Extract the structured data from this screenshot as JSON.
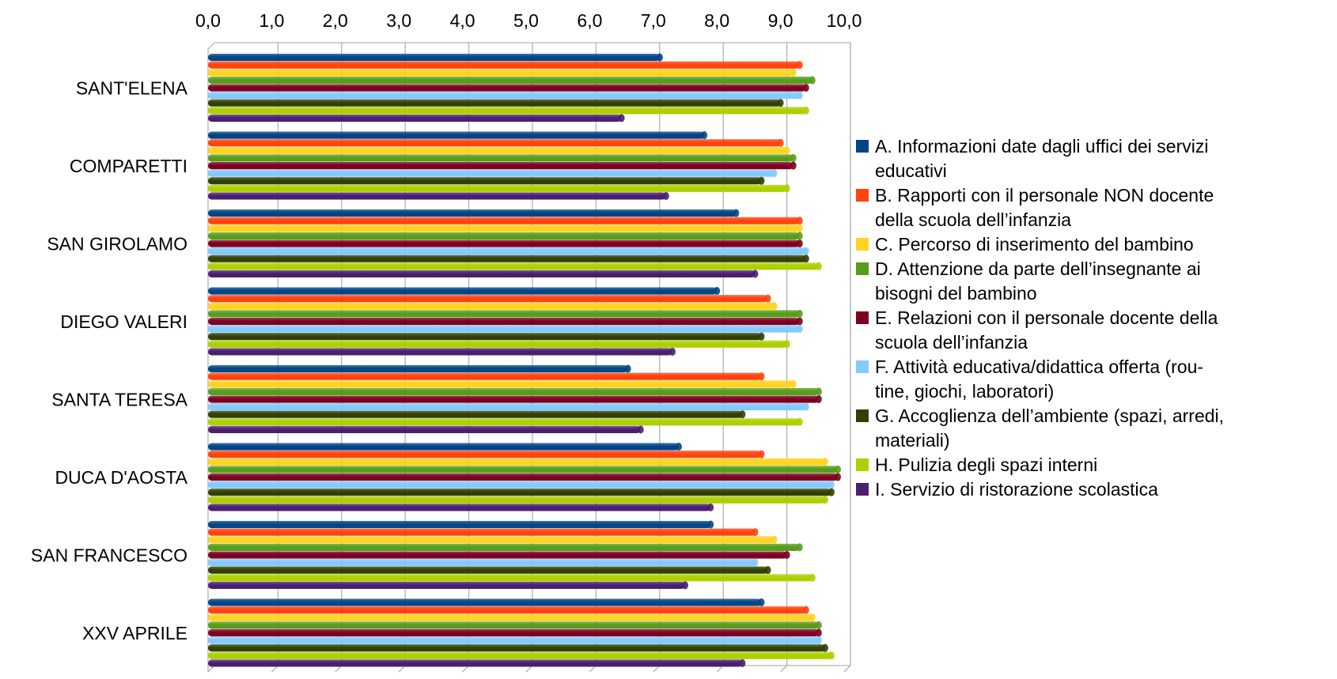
{
  "chart_data": {
    "type": "bar",
    "orientation": "horizontal",
    "title": "",
    "xlabel": "",
    "ylabel": "",
    "xlim": [
      0,
      10
    ],
    "x_ticks": [
      "0,0",
      "1,0",
      "2,0",
      "3,0",
      "4,0",
      "5,0",
      "6,0",
      "7,0",
      "8,0",
      "9,0",
      "10,0"
    ],
    "x_axis_position": "top",
    "grid": true,
    "legend_position": "right",
    "categories": [
      "SANT'ELENA",
      "COMPARETTI",
      "SAN GIROLAMO",
      "DIEGO VALERI",
      "SANTA TERESA",
      "DUCA D'AOSTA",
      "SAN FRANCESCO",
      "XXV APRILE"
    ],
    "series": [
      {
        "name": "A. Informazioni date dagli uffici dei servizi educativi",
        "legend_lines": [
          "A. Informazioni date dagli uffici dei servizi",
          "educativi"
        ],
        "color": "#004586",
        "values": [
          7.1,
          7.8,
          8.3,
          8.0,
          6.6,
          7.4,
          7.9,
          8.7
        ]
      },
      {
        "name": "B. Rapporti con il personale NON docente della scuola dell’infanzia",
        "legend_lines": [
          "B. Rapporti con il personale NON docente",
          "della scuola dell’infanzia"
        ],
        "color": "#ff420e",
        "values": [
          9.3,
          9.0,
          9.3,
          8.8,
          8.7,
          8.7,
          8.6,
          9.4
        ]
      },
      {
        "name": "C. Percorso di inserimento del bambino",
        "legend_lines": [
          "C. Percorso di inserimento del bambino"
        ],
        "color": "#ffd320",
        "values": [
          9.2,
          9.1,
          9.3,
          8.9,
          9.2,
          9.7,
          8.9,
          9.5
        ]
      },
      {
        "name": "D. Attenzione da parte dell’insegnante ai bisogni del bambino",
        "legend_lines": [
          "D. Attenzione da parte dell’insegnante ai",
          "bisogni del bambino"
        ],
        "color": "#579d1c",
        "values": [
          9.5,
          9.2,
          9.3,
          9.3,
          9.6,
          9.9,
          9.3,
          9.6
        ]
      },
      {
        "name": "E. Relazioni con il personale docente della scuola dell’infanzia",
        "legend_lines": [
          "E. Relazioni con il personale docente della",
          "scuola dell’infanzia"
        ],
        "color": "#7e0021",
        "values": [
          9.4,
          9.2,
          9.3,
          9.3,
          9.6,
          9.9,
          9.1,
          9.6
        ]
      },
      {
        "name": "F. Attività educativa/didattica offerta (routine, giochi, laboratori)",
        "legend_lines": [
          "F. Attività educativa/didattica offerta (rou-",
          "tine, giochi, laboratori)"
        ],
        "color": "#83caff",
        "values": [
          9.3,
          8.9,
          9.4,
          9.3,
          9.4,
          9.8,
          8.6,
          9.6
        ]
      },
      {
        "name": "G. Accoglienza dell’ambiente (spazi, arredi, materiali)",
        "legend_lines": [
          "G. Accoglienza dell’ambiente (spazi, arredi,",
          "materiali)"
        ],
        "color": "#314004",
        "values": [
          9.0,
          8.7,
          9.4,
          8.7,
          8.4,
          9.8,
          8.8,
          9.7
        ]
      },
      {
        "name": "H. Pulizia degli spazi interni",
        "legend_lines": [
          "H. Pulizia degli spazi interni"
        ],
        "color": "#aecf00",
        "values": [
          9.4,
          9.1,
          9.6,
          9.1,
          9.3,
          9.7,
          9.5,
          9.8
        ]
      },
      {
        "name": "I. Servizio di ristorazione scolastica",
        "legend_lines": [
          "I. Servizio di ristorazione scolastica"
        ],
        "color": "#4b1f6f",
        "values": [
          6.5,
          7.2,
          8.6,
          7.3,
          6.8,
          7.9,
          7.5,
          8.4
        ]
      }
    ]
  }
}
